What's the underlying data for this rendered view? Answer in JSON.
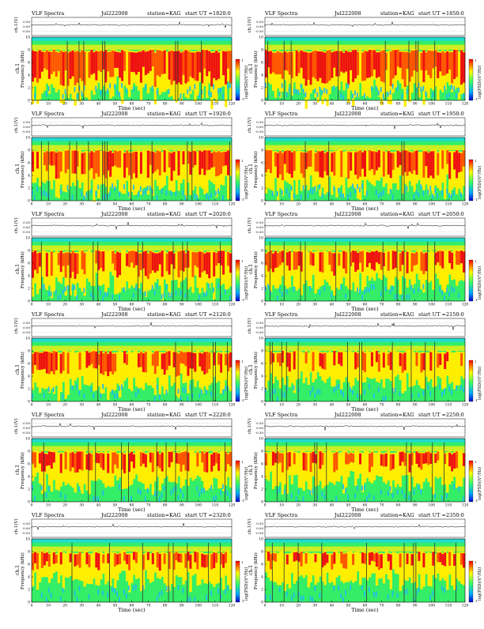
{
  "page_size_note": "",
  "common": {
    "title_left": "VLF Spectra",
    "station": "station=KAG",
    "start_prefix": "start UT =",
    "wave_ylabel": "ch.1(V)",
    "wave_ticks": [
      "0.50",
      "0.00",
      "-0.50"
    ],
    "spec_ylabel_1": "ch.1",
    "spec_ylabel_2": "Frequency (kHz)",
    "spec_yticks": [
      "10",
      "8",
      "6",
      "4",
      "2",
      "0"
    ],
    "xticks": [
      "0",
      "10",
      "20",
      "30",
      "40",
      "50",
      "60",
      "70",
      "80",
      "90",
      "100",
      "110",
      "120"
    ],
    "xlabel": "Time (sec)",
    "cbar_label": "log(PSD)(V²/Hz)",
    "cbar_ticks": [
      "1",
      "-1"
    ]
  },
  "panels": [
    {
      "date": "Jul222008",
      "start_ut": "1820:0"
    },
    {
      "date": "Jul222008",
      "start_ut": "1850:0"
    },
    {
      "date": "Jul222008",
      "start_ut": "1920:0"
    },
    {
      "date": "Jul222008",
      "start_ut": "1950:0"
    },
    {
      "date": "Jul222008",
      "start_ut": "2020:0"
    },
    {
      "date": "Jul222008",
      "start_ut": "2050:0"
    },
    {
      "date": "Jul222008",
      "start_ut": "2120:0"
    },
    {
      "date": "Jul222008",
      "start_ut": "2150:0"
    },
    {
      "date": "Jul222008",
      "start_ut": "2220:0"
    },
    {
      "date": "Jul222008",
      "start_ut": "2250:0"
    },
    {
      "date": "Jul222008",
      "start_ut": "2320:0"
    },
    {
      "date": "Jul222008",
      "start_ut": "2350:0"
    }
  ],
  "chart_data": {
    "type": "heatmap",
    "x_range": [
      0,
      120
    ],
    "x_unit": "sec",
    "y_range": [
      0,
      10
    ],
    "y_unit": "kHz",
    "waveform_range": [
      -0.5,
      0.5
    ],
    "colormap": [
      "#0033ff",
      "#00ccff",
      "#33ff99",
      "#ffff00",
      "#ff0000"
    ],
    "grid": false
  }
}
